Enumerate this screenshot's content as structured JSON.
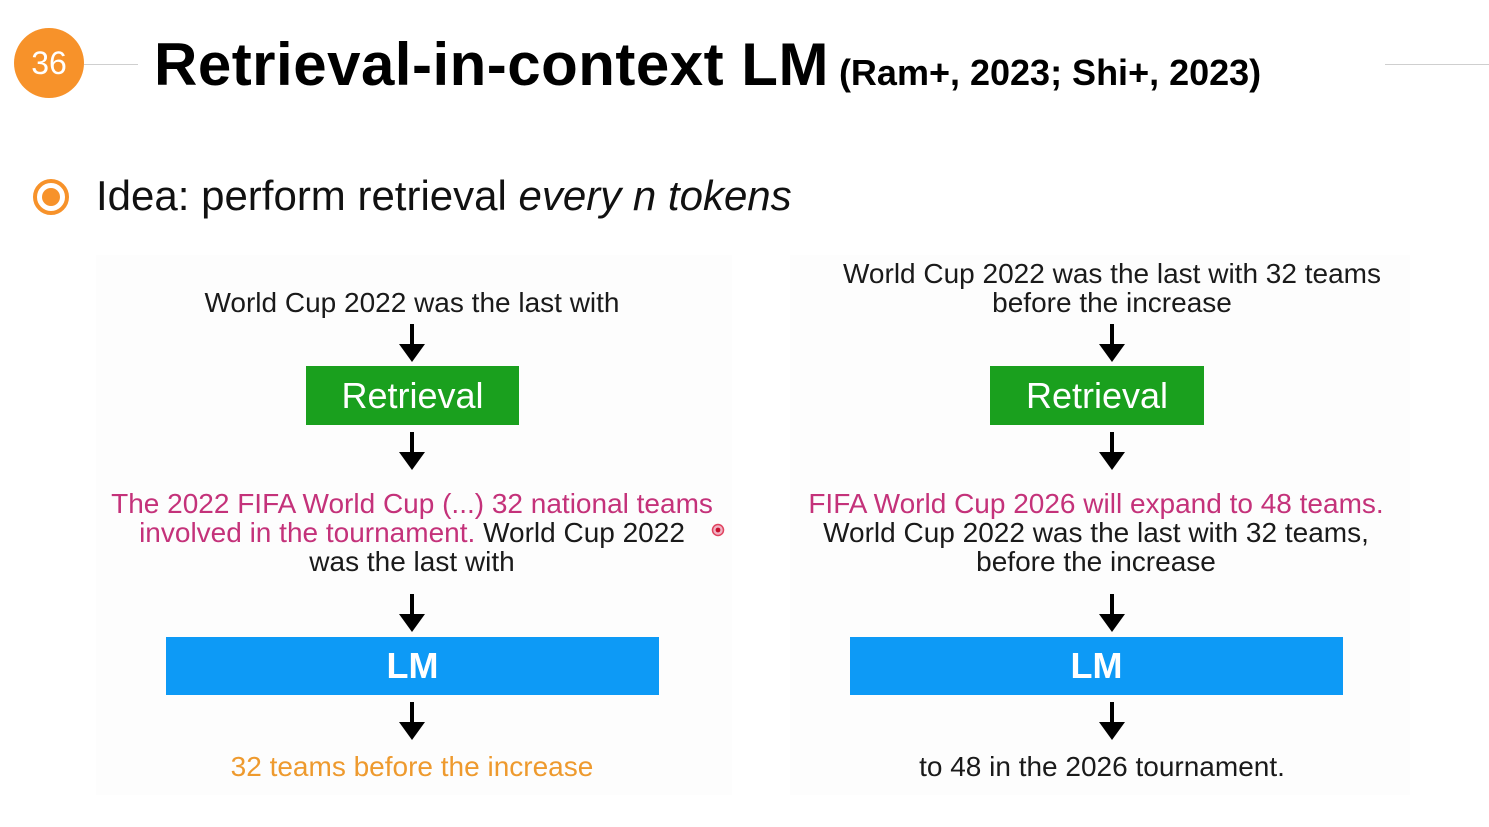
{
  "slide": {
    "number": "36",
    "title": "Retrieval-in-context LM",
    "citation": "(Ram+, 2023; Shi+, 2023)"
  },
  "bullet": {
    "prefix": "Idea: perform retrieval ",
    "emphasis": "every n tokens"
  },
  "left": {
    "input": "World Cup 2022 was the last with",
    "retrieval_label": "Retrieval",
    "retrieved_pink_line1": "The 2022 FIFA World Cup (...) 32 national teams",
    "retrieved_pink_line2": "involved in the tournament.",
    "retrieved_dark_line2": " World Cup 2022",
    "retrieved_dark_line3": "was the last with",
    "lm_label": "LM",
    "output": "32 teams before the increase"
  },
  "right": {
    "input_line1": "World Cup 2022 was the last with 32 teams",
    "input_line2": "before the increase",
    "retrieval_label": "Retrieval",
    "retrieved_pink_line1": "FIFA World Cup 2026 will expand to 48 teams.",
    "retrieved_dark_line2": "World Cup 2022 was the last with 32 teams,",
    "retrieved_dark_line3": "before the increase",
    "lm_label": "LM",
    "output": "to 48 in the 2026 tournament."
  },
  "colors": {
    "badge": "#f7922a",
    "retrieval_box": "#1aa01e",
    "lm_box": "#0d9af6",
    "retrieved_text": "#c4327a",
    "output_highlight": "#ee9a2e"
  }
}
